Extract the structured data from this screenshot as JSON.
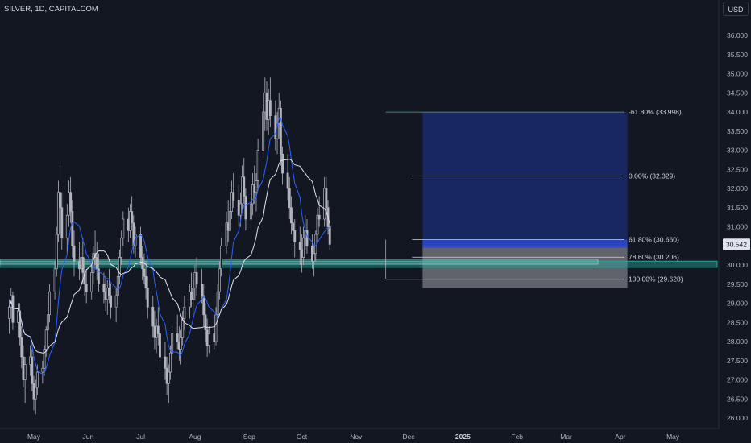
{
  "header": {
    "symbol_label": "SILVER, 1D, CAPITALCOM",
    "currency_label": "USD"
  },
  "chart_data": {
    "type": "candlestick",
    "y_range": [
      25.85,
      36.6
    ],
    "y_ticks": [
      "26.000",
      "26.500",
      "27.000",
      "27.500",
      "28.000",
      "28.500",
      "29.000",
      "29.500",
      "30.000",
      "30.500",
      "31.000",
      "31.500",
      "32.000",
      "32.500",
      "33.000",
      "33.500",
      "34.000",
      "34.500",
      "35.000",
      "35.500",
      "36.000"
    ],
    "x_labels": [
      {
        "label": "May",
        "date": "2024-05-01",
        "bold": false
      },
      {
        "label": "Jun",
        "date": "2024-06-01",
        "bold": false
      },
      {
        "label": "Jul",
        "date": "2024-07-01",
        "bold": false
      },
      {
        "label": "Aug",
        "date": "2024-08-01",
        "bold": false
      },
      {
        "label": "Sep",
        "date": "2024-09-01",
        "bold": false
      },
      {
        "label": "Oct",
        "date": "2024-10-01",
        "bold": false
      },
      {
        "label": "Nov",
        "date": "2024-11-01",
        "bold": false
      },
      {
        "label": "Dec",
        "date": "2024-12-01",
        "bold": false
      },
      {
        "label": "2025",
        "date": "2025-01-01",
        "bold": true
      },
      {
        "label": "Feb",
        "date": "2025-02-01",
        "bold": false
      },
      {
        "label": "Mar",
        "date": "2025-03-01",
        "bold": false
      },
      {
        "label": "Apr",
        "date": "2025-04-01",
        "bold": false
      },
      {
        "label": "May",
        "date": "2025-05-01",
        "bold": false
      }
    ],
    "last_price": "30.542",
    "support_zone": [
      29.94,
      30.1
    ],
    "colors": {
      "candle": "#b2b5be",
      "ma_fast": "#2962ff",
      "ma_slow": "#e0e3eb",
      "zone": "#26a69a",
      "target_box": "#1a2a6b",
      "stop_box": "#7b7e86",
      "price_label_bg": "#e0e3eb",
      "fib_top": "#4caf7f"
    },
    "fibonacci": [
      {
        "label": "-61.80% (33.998)",
        "price": 33.998,
        "start": "2024-11-18"
      },
      {
        "label": "0.00% (32.329)",
        "price": 32.329,
        "start": "2024-12-03"
      },
      {
        "label": "61.80% (30.660)",
        "price": 30.66,
        "start": "2024-12-03"
      },
      {
        "label": "78.60% (30.206)",
        "price": 30.206,
        "start": "2024-12-03"
      },
      {
        "label": "100.00% (29.628)",
        "price": 29.628,
        "start": "2024-11-18"
      }
    ],
    "position_tool": {
      "start": "2024-12-09",
      "end": "2025-04-05",
      "entry": 30.52,
      "target": 33.998,
      "stop": 29.4
    },
    "candles_ohlc": [
      [
        28.6,
        29.1,
        28.2,
        28.9
      ],
      [
        28.9,
        29.4,
        28.6,
        29.2
      ],
      [
        29.2,
        29.3,
        28.3,
        28.5
      ],
      [
        28.5,
        29.0,
        28.1,
        28.8
      ],
      [
        28.8,
        29.0,
        27.9,
        28.1
      ],
      [
        28.1,
        28.4,
        27.3,
        27.6
      ],
      [
        27.6,
        27.9,
        26.8,
        27.0
      ],
      [
        27.0,
        27.6,
        26.4,
        27.4
      ],
      [
        27.4,
        27.9,
        27.1,
        27.6
      ],
      [
        27.6,
        27.8,
        26.7,
        26.9
      ],
      [
        26.9,
        27.1,
        26.2,
        26.5
      ],
      [
        26.5,
        27.0,
        26.1,
        26.8
      ],
      [
        26.8,
        27.4,
        26.6,
        27.2
      ],
      [
        27.2,
        27.5,
        26.9,
        27.3
      ],
      [
        27.3,
        27.9,
        27.1,
        27.8
      ],
      [
        27.8,
        28.4,
        27.6,
        28.3
      ],
      [
        28.3,
        28.9,
        28.0,
        28.7
      ],
      [
        28.7,
        29.5,
        28.5,
        29.3
      ],
      [
        29.3,
        30.1,
        29.1,
        29.9
      ],
      [
        29.9,
        31.0,
        29.7,
        30.8
      ],
      [
        30.8,
        32.2,
        30.6,
        31.9
      ],
      [
        31.9,
        32.6,
        31.2,
        31.5
      ],
      [
        31.5,
        31.9,
        30.4,
        30.7
      ],
      [
        30.7,
        31.6,
        30.3,
        31.3
      ],
      [
        31.3,
        32.2,
        31.0,
        31.9
      ],
      [
        31.9,
        32.3,
        31.1,
        31.4
      ],
      [
        31.4,
        31.7,
        30.2,
        30.5
      ],
      [
        30.5,
        30.9,
        29.7,
        30.1
      ],
      [
        30.1,
        30.6,
        29.6,
        29.9
      ],
      [
        29.9,
        30.5,
        29.4,
        30.2
      ],
      [
        30.2,
        30.7,
        29.5,
        29.8
      ],
      [
        29.8,
        30.2,
        29.2,
        29.5
      ],
      [
        29.5,
        29.9,
        29.0,
        29.3
      ],
      [
        29.3,
        30.0,
        29.1,
        29.8
      ],
      [
        29.8,
        30.5,
        29.5,
        30.3
      ],
      [
        30.3,
        30.9,
        30.0,
        30.2
      ],
      [
        30.2,
        30.6,
        29.6,
        29.9
      ],
      [
        29.9,
        30.3,
        29.3,
        29.5
      ],
      [
        29.5,
        29.8,
        29.0,
        29.3
      ],
      [
        29.3,
        29.7,
        28.8,
        29.1
      ],
      [
        29.1,
        29.6,
        28.7,
        29.4
      ],
      [
        29.4,
        29.9,
        29.0,
        29.2
      ],
      [
        29.2,
        29.5,
        28.6,
        28.9
      ],
      [
        28.9,
        29.4,
        28.5,
        29.2
      ],
      [
        29.2,
        29.9,
        29.0,
        29.7
      ],
      [
        29.7,
        30.4,
        29.5,
        30.2
      ],
      [
        30.2,
        30.9,
        30.0,
        30.7
      ],
      [
        30.7,
        31.4,
        30.5,
        31.2
      ],
      [
        31.2,
        31.5,
        30.6,
        30.9
      ],
      [
        30.9,
        31.6,
        30.7,
        31.4
      ],
      [
        31.4,
        31.8,
        30.9,
        31.1
      ],
      [
        31.1,
        31.3,
        30.3,
        30.5
      ],
      [
        30.5,
        31.0,
        30.2,
        30.8
      ],
      [
        30.8,
        31.0,
        30.0,
        30.2
      ],
      [
        30.2,
        30.5,
        29.6,
        29.9
      ],
      [
        29.9,
        30.3,
        29.5,
        29.7
      ],
      [
        29.7,
        30.1,
        29.1,
        29.4
      ],
      [
        29.4,
        29.7,
        28.6,
        28.9
      ],
      [
        28.9,
        29.2,
        28.1,
        28.4
      ],
      [
        28.4,
        28.8,
        27.8,
        28.1
      ],
      [
        28.1,
        28.6,
        27.7,
        28.4
      ],
      [
        28.4,
        28.9,
        27.9,
        28.2
      ],
      [
        28.2,
        28.5,
        27.3,
        27.6
      ],
      [
        27.6,
        28.0,
        27.0,
        27.3
      ],
      [
        27.3,
        27.6,
        26.6,
        26.9
      ],
      [
        26.9,
        27.4,
        26.4,
        27.2
      ],
      [
        27.2,
        27.9,
        27.0,
        27.7
      ],
      [
        27.7,
        28.4,
        27.5,
        28.2
      ],
      [
        28.2,
        28.7,
        27.8,
        28.0
      ],
      [
        28.0,
        28.4,
        27.5,
        27.8
      ],
      [
        27.8,
        28.3,
        27.4,
        28.1
      ],
      [
        28.1,
        28.8,
        27.9,
        28.6
      ],
      [
        28.6,
        29.2,
        28.3,
        28.9
      ],
      [
        28.9,
        29.5,
        28.6,
        29.3
      ],
      [
        29.3,
        29.8,
        28.9,
        29.1
      ],
      [
        29.1,
        29.6,
        28.7,
        29.4
      ],
      [
        29.4,
        30.0,
        29.1,
        29.8
      ],
      [
        29.8,
        30.2,
        29.2,
        29.5
      ],
      [
        29.5,
        29.9,
        29.0,
        29.2
      ],
      [
        29.2,
        29.5,
        28.4,
        28.7
      ],
      [
        28.7,
        29.0,
        28.0,
        28.3
      ],
      [
        28.3,
        28.6,
        27.6,
        27.9
      ],
      [
        27.9,
        28.4,
        27.7,
        28.2
      ],
      [
        28.2,
        28.7,
        27.8,
        28.0
      ],
      [
        28.0,
        28.9,
        27.9,
        28.7
      ],
      [
        28.7,
        29.5,
        28.5,
        29.3
      ],
      [
        29.3,
        30.1,
        29.1,
        29.9
      ],
      [
        29.9,
        30.7,
        29.7,
        30.5
      ],
      [
        30.5,
        31.4,
        30.3,
        31.1
      ],
      [
        31.1,
        31.7,
        30.6,
        30.9
      ],
      [
        30.9,
        31.6,
        30.7,
        31.4
      ],
      [
        31.4,
        32.2,
        31.2,
        31.9
      ],
      [
        31.9,
        32.4,
        31.5,
        31.7
      ],
      [
        31.7,
        32.1,
        31.0,
        31.3
      ],
      [
        31.3,
        31.9,
        31.0,
        31.6
      ],
      [
        31.6,
        32.6,
        31.4,
        32.3
      ],
      [
        32.3,
        32.8,
        31.6,
        31.8
      ],
      [
        31.8,
        32.0,
        30.9,
        31.2
      ],
      [
        31.2,
        31.8,
        30.9,
        31.6
      ],
      [
        31.6,
        32.4,
        31.3,
        32.1
      ],
      [
        32.1,
        32.6,
        31.6,
        31.9
      ],
      [
        31.9,
        32.4,
        31.4,
        32.2
      ],
      [
        32.2,
        33.3,
        32.0,
        33.0
      ],
      [
        33.0,
        34.2,
        32.8,
        34.0
      ],
      [
        34.0,
        34.9,
        33.5,
        34.5
      ],
      [
        34.5,
        34.8,
        33.5,
        33.8
      ],
      [
        33.8,
        34.6,
        33.4,
        34.3
      ],
      [
        34.3,
        34.9,
        33.6,
        33.9
      ],
      [
        33.9,
        34.3,
        33.0,
        33.3
      ],
      [
        33.3,
        34.0,
        32.9,
        33.7
      ],
      [
        33.7,
        34.5,
        33.3,
        34.1
      ],
      [
        34.1,
        34.3,
        32.6,
        32.9
      ],
      [
        32.9,
        33.1,
        32.1,
        32.4
      ],
      [
        32.4,
        32.9,
        31.7,
        32.0
      ],
      [
        32.0,
        32.3,
        31.2,
        31.5
      ],
      [
        31.5,
        31.8,
        30.8,
        31.1
      ],
      [
        31.1,
        31.4,
        30.5,
        30.9
      ],
      [
        30.9,
        31.2,
        30.2,
        30.6
      ],
      [
        30.6,
        31.0,
        30.0,
        30.4
      ],
      [
        30.4,
        30.8,
        29.8,
        30.2
      ],
      [
        30.2,
        31.0,
        30.0,
        30.7
      ],
      [
        30.7,
        31.3,
        30.4,
        30.9
      ],
      [
        30.9,
        31.2,
        30.3,
        30.5
      ],
      [
        30.5,
        30.8,
        29.9,
        30.1
      ],
      [
        30.1,
        30.5,
        29.7,
        30.3
      ],
      [
        30.3,
        30.9,
        30.1,
        30.8
      ],
      [
        30.8,
        31.5,
        30.6,
        31.3
      ],
      [
        31.3,
        31.8,
        31.0,
        31.2
      ],
      [
        31.2,
        32.3,
        31.0,
        32.0
      ],
      [
        32.0,
        32.3,
        31.3,
        31.5
      ],
      [
        31.5,
        31.7,
        30.8,
        31.0
      ],
      [
        31.0,
        31.1,
        30.4,
        30.542
      ]
    ],
    "candles_start": "2024-04-17"
  }
}
